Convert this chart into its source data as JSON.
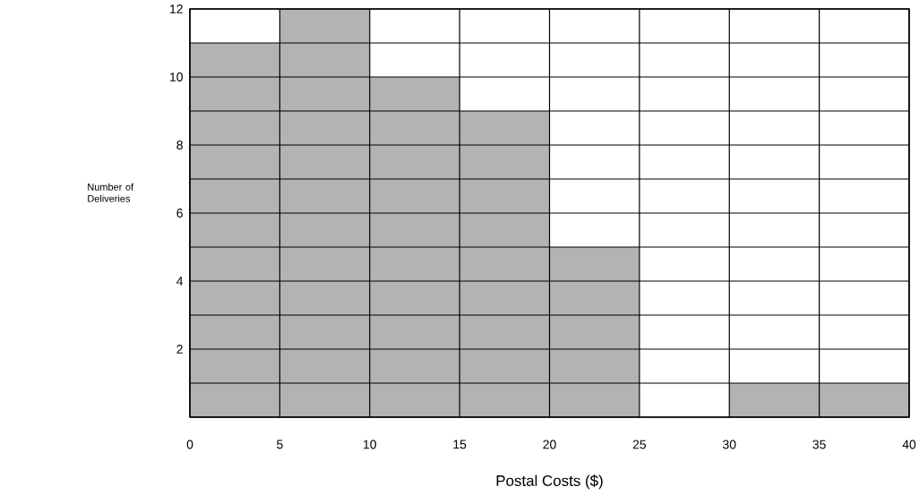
{
  "chart_data": {
    "type": "histogram",
    "xlabel": "Postal Costs ($)",
    "ylabel": "Number of Deliveries",
    "bins": [
      0,
      5,
      10,
      15,
      20,
      25,
      30,
      35,
      40
    ],
    "values": [
      11,
      12,
      10,
      9,
      5,
      0,
      1,
      1
    ],
    "color": "#b3b3b3",
    "xlim": [
      0,
      40
    ],
    "ylim": [
      0,
      12
    ],
    "xticks": [
      0,
      5,
      10,
      15,
      20,
      25,
      30,
      35,
      40
    ],
    "yticks": [
      2,
      4,
      6,
      8,
      10,
      12
    ],
    "grid": true
  }
}
